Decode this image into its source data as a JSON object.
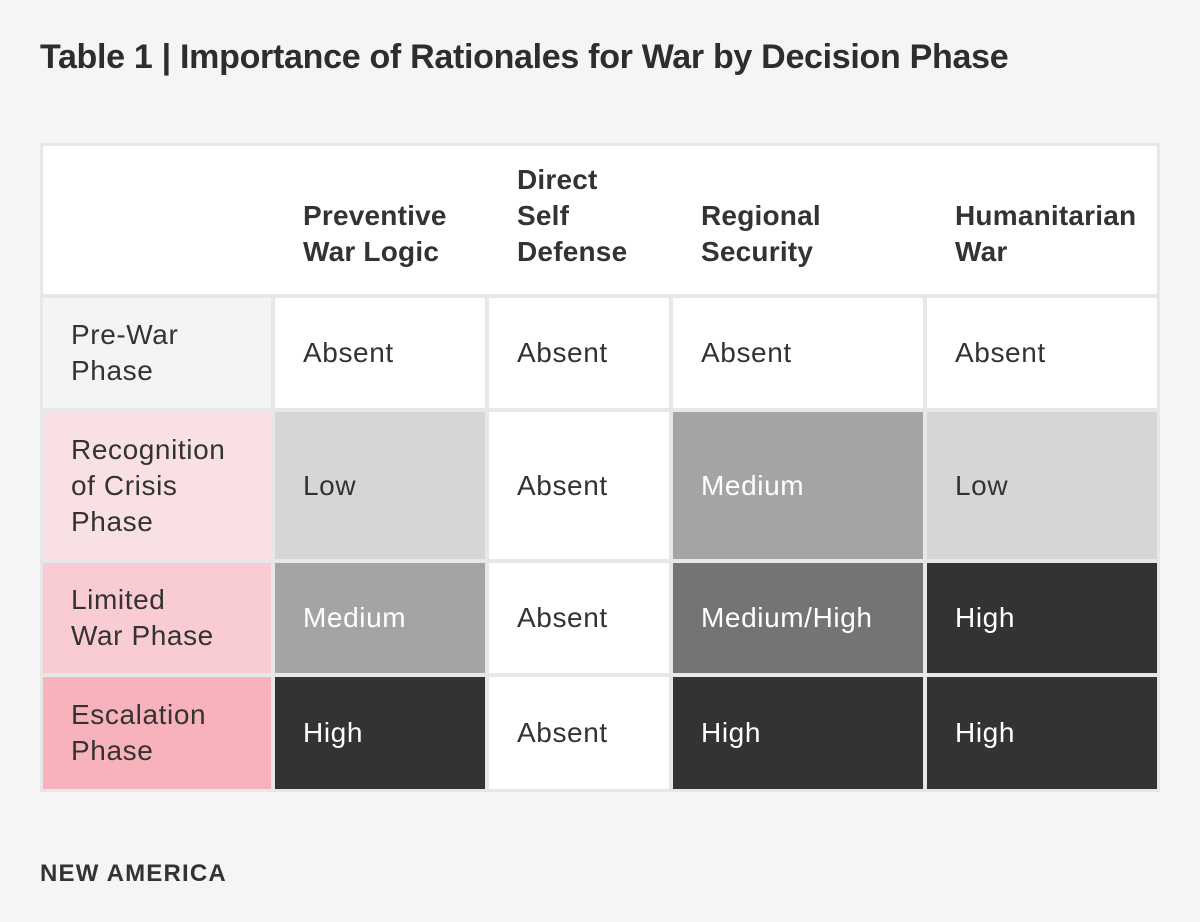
{
  "title": "Table 1 | Importance of Rationales for War by Decision Phase",
  "footer": {
    "brand": "NEW AMERICA"
  },
  "colors": {
    "page_bg": "#f5f5f5",
    "grid": "#e7e7e7",
    "header_bg": "#ffffff",
    "text_dark": "#333333",
    "text_light": "#ffffff",
    "level_absent": "#ffffff",
    "level_low": "#d6d6d6",
    "level_medium": "#a4a4a4",
    "level_medium_high": "#747474",
    "level_high": "#333333"
  },
  "table": {
    "header": {
      "labels": [
        "",
        "Preventive\nWar Logic",
        "Direct\nSelf\nDefense",
        "Regional\nSecurity",
        "Humanitarian\nWar"
      ]
    },
    "rows": [
      {
        "label": "Pre-War\nPhase",
        "label_bg": "#f4f4f4",
        "cells": [
          {
            "text": "Absent",
            "level": "absent"
          },
          {
            "text": "Absent",
            "level": "absent"
          },
          {
            "text": "Absent",
            "level": "absent"
          },
          {
            "text": "Absent",
            "level": "absent"
          }
        ]
      },
      {
        "label": "Recognition\nof Crisis\nPhase",
        "label_bg": "#f8e0e4",
        "cells": [
          {
            "text": "Low",
            "level": "low"
          },
          {
            "text": "Absent",
            "level": "absent"
          },
          {
            "text": "Medium",
            "level": "medium"
          },
          {
            "text": "Low",
            "level": "low"
          }
        ]
      },
      {
        "label": "Limited\nWar Phase",
        "label_bg": "#f8ccd2",
        "cells": [
          {
            "text": "Medium",
            "level": "medium"
          },
          {
            "text": "Absent",
            "level": "absent"
          },
          {
            "text": "Medium/High",
            "level": "medium_high"
          },
          {
            "text": "High",
            "level": "high"
          }
        ]
      },
      {
        "label": "Escalation\nPhase",
        "label_bg": "#f7b2bb",
        "cells": [
          {
            "text": "High",
            "level": "high"
          },
          {
            "text": "Absent",
            "level": "absent"
          },
          {
            "text": "High",
            "level": "high"
          },
          {
            "text": "High",
            "level": "high"
          }
        ]
      }
    ]
  },
  "chart_data": {
    "type": "table",
    "title": "Table 1 | Importance of Rationales for War by Decision Phase",
    "columns": [
      "Preventive War Logic",
      "Direct Self Defense",
      "Regional Security",
      "Humanitarian War"
    ],
    "rows": [
      "Pre-War Phase",
      "Recognition of Crisis Phase",
      "Limited War Phase",
      "Escalation Phase"
    ],
    "values": [
      [
        "Absent",
        "Absent",
        "Absent",
        "Absent"
      ],
      [
        "Low",
        "Absent",
        "Medium",
        "Low"
      ],
      [
        "Medium",
        "Absent",
        "Medium/High",
        "High"
      ],
      [
        "High",
        "Absent",
        "High",
        "High"
      ]
    ],
    "legend": "Cell shading encodes importance: white = Absent, light gray = Low, gray = Medium, dark gray = Medium/High, near-black = High",
    "source_brand": "NEW AMERICA"
  }
}
